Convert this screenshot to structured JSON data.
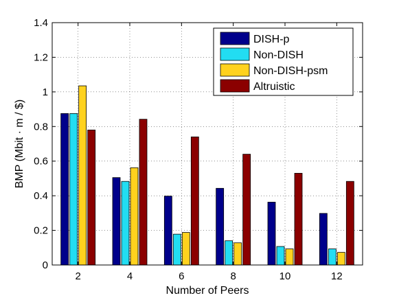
{
  "chart_data": {
    "type": "bar",
    "title": "",
    "xlabel": "Number of Peers",
    "ylabel": "BMP (Mbit · m / $)",
    "categories": [
      "2",
      "4",
      "6",
      "8",
      "10",
      "12"
    ],
    "series": [
      {
        "name": "DISH-p",
        "color": "#00008b",
        "values": [
          0.875,
          0.505,
          0.398,
          0.443,
          0.363,
          0.298
        ]
      },
      {
        "name": "Non-DISH",
        "color": "#22ddf2",
        "values": [
          0.875,
          0.483,
          0.178,
          0.14,
          0.107,
          0.093
        ]
      },
      {
        "name": "Non-DISH-psm",
        "color": "#ffd21e",
        "values": [
          1.035,
          0.562,
          0.188,
          0.128,
          0.093,
          0.073
        ]
      },
      {
        "name": "Altruistic",
        "color": "#8b0000",
        "values": [
          0.78,
          0.842,
          0.74,
          0.64,
          0.53,
          0.483
        ]
      }
    ],
    "ylim": [
      0,
      1.4
    ],
    "yticks": [
      "0",
      "0.2",
      "0.4",
      "0.6",
      "0.8",
      "1",
      "1.2",
      "1.4"
    ],
    "grid": true,
    "legend_position": "top-right"
  }
}
